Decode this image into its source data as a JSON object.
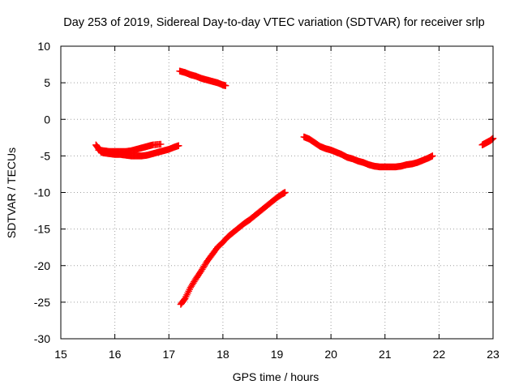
{
  "chart_data": {
    "type": "scatter",
    "title": "Day 253 of 2019, Sidereal Day-to-day VTEC variation (SDTVAR) for receiver srlp",
    "xlabel": "GPS time / hours",
    "ylabel": "SDTVAR / TECUs",
    "xlim": [
      15,
      23
    ],
    "ylim": [
      -30,
      10
    ],
    "xticks": [
      "15",
      "16",
      "17",
      "18",
      "19",
      "20",
      "21",
      "22",
      "23"
    ],
    "yticks": [
      "10",
      "5",
      "0",
      "-5",
      "-10",
      "-15",
      "-20",
      "-25",
      "-30"
    ],
    "grid": true,
    "marker": "+",
    "point_color": "#ff0000",
    "series": [
      {
        "points": [
          [
            15.65,
            -3.5
          ],
          [
            15.7,
            -4.0
          ],
          [
            15.75,
            -4.5
          ],
          [
            15.8,
            -4.6
          ],
          [
            15.9,
            -4.7
          ],
          [
            16.0,
            -4.8
          ],
          [
            16.1,
            -4.8
          ],
          [
            16.2,
            -4.9
          ],
          [
            16.3,
            -5.0
          ],
          [
            16.4,
            -5.0
          ],
          [
            16.5,
            -5.0
          ],
          [
            16.6,
            -4.9
          ],
          [
            16.7,
            -4.7
          ],
          [
            16.8,
            -4.5
          ],
          [
            16.9,
            -4.3
          ],
          [
            17.0,
            -4.1
          ],
          [
            17.1,
            -3.8
          ],
          [
            17.18,
            -3.6
          ]
        ]
      },
      {
        "points": [
          [
            15.7,
            -4.2
          ],
          [
            15.8,
            -4.3
          ],
          [
            15.9,
            -4.4
          ],
          [
            16.0,
            -4.4
          ],
          [
            16.1,
            -4.4
          ],
          [
            16.2,
            -4.4
          ],
          [
            16.3,
            -4.3
          ],
          [
            16.4,
            -4.1
          ],
          [
            16.5,
            -3.9
          ],
          [
            16.6,
            -3.7
          ],
          [
            16.7,
            -3.5
          ],
          [
            16.85,
            -3.4
          ]
        ]
      },
      {
        "points": [
          [
            17.2,
            6.6
          ],
          [
            17.3,
            6.4
          ],
          [
            17.4,
            6.1
          ],
          [
            17.5,
            5.9
          ],
          [
            17.6,
            5.6
          ],
          [
            17.7,
            5.4
          ],
          [
            17.8,
            5.2
          ],
          [
            17.9,
            5.0
          ],
          [
            18.0,
            4.7
          ],
          [
            18.05,
            4.6
          ]
        ]
      },
      {
        "points": [
          [
            17.22,
            -25.3
          ],
          [
            17.3,
            -24.5
          ],
          [
            17.4,
            -23.0
          ],
          [
            17.5,
            -21.8
          ],
          [
            17.6,
            -20.7
          ],
          [
            17.7,
            -19.5
          ],
          [
            17.8,
            -18.5
          ],
          [
            17.9,
            -17.5
          ],
          [
            18.0,
            -16.8
          ],
          [
            18.1,
            -16.0
          ],
          [
            18.2,
            -15.4
          ],
          [
            18.3,
            -14.8
          ],
          [
            18.4,
            -14.2
          ],
          [
            18.5,
            -13.7
          ],
          [
            18.6,
            -13.1
          ],
          [
            18.7,
            -12.5
          ],
          [
            18.8,
            -11.9
          ],
          [
            18.9,
            -11.3
          ],
          [
            19.0,
            -10.7
          ],
          [
            19.1,
            -10.2
          ],
          [
            19.15,
            -10.0
          ]
        ]
      },
      {
        "points": [
          [
            19.5,
            -2.4
          ],
          [
            19.6,
            -2.7
          ],
          [
            19.7,
            -3.2
          ],
          [
            19.8,
            -3.7
          ],
          [
            19.9,
            -4.0
          ],
          [
            20.0,
            -4.2
          ],
          [
            20.1,
            -4.5
          ],
          [
            20.2,
            -4.8
          ],
          [
            20.3,
            -5.2
          ],
          [
            20.4,
            -5.4
          ],
          [
            20.5,
            -5.7
          ],
          [
            20.6,
            -5.9
          ],
          [
            20.7,
            -6.2
          ],
          [
            20.8,
            -6.4
          ],
          [
            20.9,
            -6.5
          ],
          [
            21.0,
            -6.5
          ],
          [
            21.1,
            -6.5
          ],
          [
            21.2,
            -6.5
          ],
          [
            21.3,
            -6.4
          ],
          [
            21.4,
            -6.2
          ],
          [
            21.5,
            -6.1
          ],
          [
            21.6,
            -5.9
          ],
          [
            21.7,
            -5.6
          ],
          [
            21.8,
            -5.3
          ],
          [
            21.88,
            -5.0
          ]
        ]
      },
      {
        "points": [
          [
            22.8,
            -3.5
          ],
          [
            22.85,
            -3.3
          ],
          [
            22.9,
            -3.1
          ],
          [
            22.95,
            -2.9
          ],
          [
            23.0,
            -2.6
          ]
        ]
      }
    ]
  }
}
